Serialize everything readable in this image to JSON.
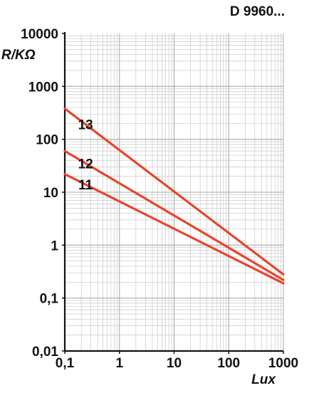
{
  "chart_data": {
    "type": "line",
    "title": "D 9960...",
    "xlabel": "Lux",
    "ylabel": "R/KΩ",
    "x_scale": "log",
    "y_scale": "log",
    "xlim": [
      0.1,
      1000
    ],
    "ylim": [
      0.01,
      10000
    ],
    "x_ticks": [
      0.1,
      1,
      10,
      100,
      1000
    ],
    "x_tick_labels": [
      "0,1",
      "1",
      "10",
      "100",
      "1000"
    ],
    "y_ticks": [
      10000,
      1000,
      100,
      10,
      1,
      0.1,
      0.01
    ],
    "y_tick_labels": [
      "10000",
      "1000",
      "100",
      "10",
      "1",
      "0,1",
      "0,01"
    ],
    "grid": true,
    "line_color": "#e8452c",
    "grid_color": "#c8c8c8",
    "series": [
      {
        "name": "13",
        "x": [
          0.1,
          1000
        ],
        "y": [
          380,
          0.28
        ]
      },
      {
        "name": "12",
        "x": [
          0.1,
          1000
        ],
        "y": [
          60,
          0.22
        ]
      },
      {
        "name": "11",
        "x": [
          0.1,
          1000
        ],
        "y": [
          22,
          0.19
        ]
      }
    ]
  }
}
